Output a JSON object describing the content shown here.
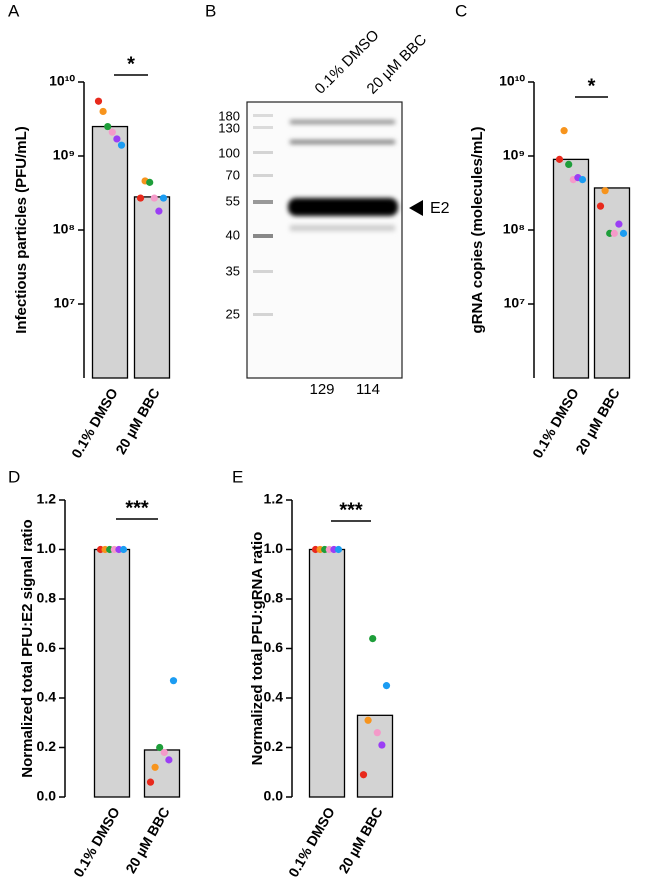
{
  "chart_data": [
    {
      "type": "bar",
      "panel": "A",
      "ylabel": "Infectious particles (PFU/mL)",
      "log_scale": true,
      "categories": [
        "0.1% DMSO",
        "20 µM BBC"
      ],
      "values": [
        2500000000,
        280000000
      ],
      "color": "#d3d3d3",
      "points": [
        {
          "color": "#e8291c",
          "values": [
            5500000000,
            270000000
          ]
        },
        {
          "color": "#f7941d",
          "values": [
            4000000000,
            460000000
          ]
        },
        {
          "color": "#1e9e3a",
          "values": [
            2500000000,
            440000000
          ]
        },
        {
          "color": "#f49ac9",
          "values": [
            2100000000,
            270000000
          ]
        },
        {
          "color": "#9b3ef5",
          "values": [
            1700000000,
            180000000
          ]
        },
        {
          "color": "#1b9cf2",
          "values": [
            1400000000,
            270000000
          ]
        }
      ],
      "ylim": [
        1000000,
        10000000000
      ],
      "yticks": [
        {
          "value": 10000000,
          "label": "10⁷"
        },
        {
          "value": 100000000,
          "label": "10⁸"
        },
        {
          "value": 1000000000,
          "label": "10⁹"
        },
        {
          "value": 10000000000,
          "label": "10¹⁰"
        }
      ],
      "annotation": "*"
    },
    {
      "type": "bar",
      "panel": "C",
      "ylabel": "gRNA copies (molecules/mL)",
      "log_scale": true,
      "categories": [
        "0.1% DMSO",
        "20 µM BBC"
      ],
      "values": [
        900000000,
        370000000
      ],
      "color": "#d3d3d3",
      "points": [
        {
          "color": "#e8291c",
          "values": [
            900000000,
            210000000
          ]
        },
        {
          "color": "#f7941d",
          "values": [
            2200000000,
            340000000
          ]
        },
        {
          "color": "#1e9e3a",
          "values": [
            770000000,
            90000000
          ]
        },
        {
          "color": "#f49ac9",
          "values": [
            480000000,
            90000000
          ]
        },
        {
          "color": "#9b3ef5",
          "values": [
            510000000,
            120000000
          ]
        },
        {
          "color": "#1b9cf2",
          "values": [
            480000000,
            90000000
          ]
        }
      ],
      "ylim": [
        1000000,
        10000000000
      ],
      "yticks": [
        {
          "value": 10000000,
          "label": "10⁷"
        },
        {
          "value": 100000000,
          "label": "10⁸"
        },
        {
          "value": 1000000000,
          "label": "10⁹"
        },
        {
          "value": 10000000000,
          "label": "10¹⁰"
        }
      ],
      "annotation": "*"
    },
    {
      "type": "bar",
      "panel": "D",
      "ylabel": "Normalized total PFU:E2 signal ratio",
      "log_scale": false,
      "categories": [
        "0.1% DMSO",
        "20 µM BBC"
      ],
      "values": [
        1.0,
        0.19
      ],
      "color": "#d3d3d3",
      "points": [
        {
          "color": "#e8291c",
          "values": [
            1.0,
            0.06
          ]
        },
        {
          "color": "#f7941d",
          "values": [
            1.0,
            0.12
          ]
        },
        {
          "color": "#1e9e3a",
          "values": [
            1.0,
            0.2
          ]
        },
        {
          "color": "#f49ac9",
          "values": [
            1.0,
            0.18
          ]
        },
        {
          "color": "#9b3ef5",
          "values": [
            1.0,
            0.15
          ]
        },
        {
          "color": "#1b9cf2",
          "values": [
            1.0,
            0.47
          ]
        }
      ],
      "ylim": [
        0,
        1.2
      ],
      "yticks": [
        {
          "value": 0,
          "label": "0.0"
        },
        0.2,
        0.4,
        0.6,
        0.8,
        {
          "value": 1,
          "label": "1.0"
        },
        1.2
      ],
      "annotation": "***"
    },
    {
      "type": "bar",
      "panel": "E",
      "ylabel": "Normalized total PFU:gRNA ratio",
      "log_scale": false,
      "categories": [
        "0.1% DMSO",
        "20 µM BBC"
      ],
      "values": [
        1.0,
        0.33
      ],
      "color": "#d3d3d3",
      "points": [
        {
          "color": "#e8291c",
          "values": [
            1.0,
            0.09
          ]
        },
        {
          "color": "#f7941d",
          "values": [
            1.0,
            0.31
          ]
        },
        {
          "color": "#1e9e3a",
          "values": [
            1.0,
            0.64
          ]
        },
        {
          "color": "#f49ac9",
          "values": [
            1.0,
            0.26
          ]
        },
        {
          "color": "#9b3ef5",
          "values": [
            1.0,
            0.21
          ]
        },
        {
          "color": "#1b9cf2",
          "values": [
            1.0,
            0.45
          ]
        }
      ],
      "ylim": [
        0,
        1.2
      ],
      "yticks": [
        {
          "value": 0,
          "label": "0.0"
        },
        0.2,
        0.4,
        0.6,
        0.8,
        {
          "value": 1,
          "label": "1.0"
        },
        1.2
      ],
      "annotation": "***"
    }
  ],
  "blot": {
    "panel": "B",
    "lanes": [
      "0.1% DMSO",
      "20 µM BBC"
    ],
    "band": "E2",
    "markers": [
      "180",
      "130",
      "100",
      "70",
      "55",
      "40",
      "35",
      "25"
    ],
    "quantification": [
      129,
      114
    ]
  }
}
